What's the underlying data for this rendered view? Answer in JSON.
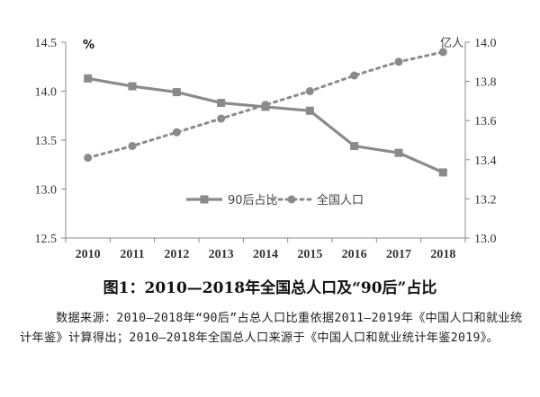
{
  "chart_data": {
    "type": "line",
    "categories": [
      "2010",
      "2011",
      "2012",
      "2013",
      "2014",
      "2015",
      "2016",
      "2017",
      "2018"
    ],
    "series": [
      {
        "name": "90后占比",
        "axis": "left",
        "style": "solid-square",
        "values": [
          14.13,
          14.05,
          13.99,
          13.88,
          13.84,
          13.8,
          13.44,
          13.37,
          13.17
        ]
      },
      {
        "name": "全国人口",
        "axis": "right",
        "style": "dotted-circle",
        "values": [
          13.41,
          13.47,
          13.54,
          13.61,
          13.68,
          13.75,
          13.83,
          13.9,
          13.95
        ]
      }
    ],
    "left_axis": {
      "unit": "%",
      "ylim": [
        12.5,
        14.5
      ],
      "ticks": [
        "12.5",
        "13.0",
        "13.5",
        "14.0",
        "14.5"
      ]
    },
    "right_axis": {
      "unit": "亿人",
      "ylim": [
        13.0,
        14.0
      ],
      "ticks": [
        "13.0",
        "13.2",
        "13.4",
        "13.6",
        "13.8",
        "14.0"
      ]
    },
    "grid": false,
    "legend_position": "lower-right",
    "colors": {
      "series1": "#8a8a8a",
      "series2": "#8a8a8a",
      "axis": "#888888",
      "text": "#333333"
    }
  },
  "caption": "图1：2010—2018年全国总人口及“90后”占比",
  "source_note": "数据来源：2010—2018年“90后”占总人口比重依据2011—2019年《中国人口和就业统计年鉴》计算得出；2010—2018年全国总人口来源于《中国人口和就业统计年鉴2019》。"
}
